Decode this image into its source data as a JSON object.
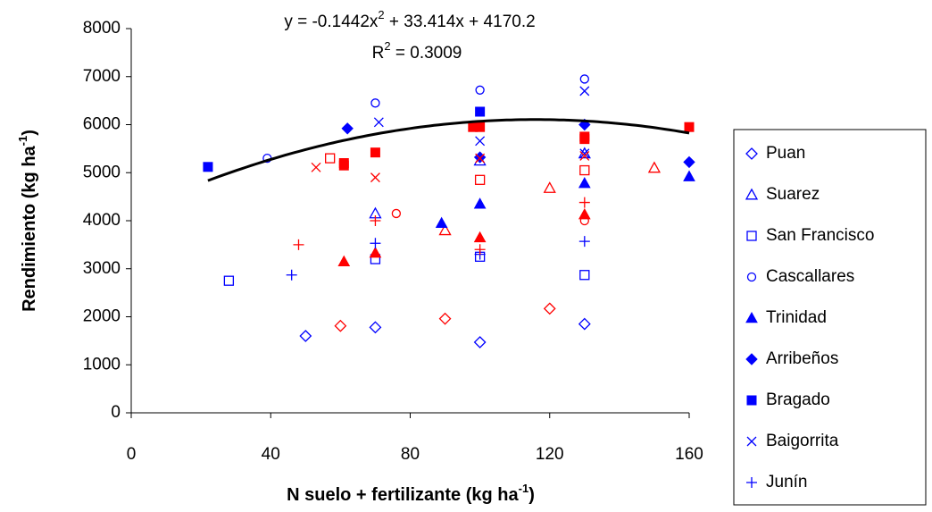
{
  "chart_data": {
    "type": "scatter",
    "equation": [
      "y = -0.1442x",
      "2",
      " + 33.414x + 4170.2"
    ],
    "r_squared": [
      "R",
      "2",
      " = 0.3009"
    ],
    "xlabel": [
      "N suelo + fertilizante (kg ha",
      "-1",
      ")"
    ],
    "ylabel": [
      "Rendimiento (kg ha",
      "-1",
      ")"
    ],
    "xlim": [
      0,
      160
    ],
    "xticks": [
      0,
      40,
      80,
      120,
      160
    ],
    "ylim": [
      0,
      8000
    ],
    "yticks": [
      0,
      1000,
      2000,
      3000,
      4000,
      5000,
      6000,
      7000,
      8000
    ],
    "trendline": {
      "coefficients": [
        -0.1442,
        33.414,
        4170.2
      ],
      "xlim": [
        22,
        160
      ],
      "color": "#000000"
    },
    "legend": "right",
    "series": [
      {
        "name": "Puan",
        "marker": "diamond-open",
        "color": "#0000ff",
        "x": [
          50,
          70,
          100,
          130,
          60,
          90,
          120
        ],
        "values": [
          1600,
          1780,
          1470,
          1850,
          1810,
          1960,
          2170
        ],
        "colors": [
          "#0000ff",
          "#0000ff",
          "#0000ff",
          "#0000ff",
          "#ff0000",
          "#ff0000",
          "#ff0000"
        ]
      },
      {
        "name": "Suarez",
        "marker": "triangle-open",
        "color": "#0000ff",
        "x": [
          70,
          100,
          130,
          90,
          120,
          150
        ],
        "values": [
          4150,
          5250,
          5400,
          3800,
          4680,
          5100
        ],
        "colors": [
          "#0000ff",
          "#0000ff",
          "#0000ff",
          "#ff0000",
          "#ff0000",
          "#ff0000"
        ]
      },
      {
        "name": "San Francisco",
        "marker": "square-open",
        "color": "#0000ff",
        "x": [
          28,
          70,
          100,
          130,
          57,
          100,
          130
        ],
        "values": [
          2750,
          3200,
          3250,
          2870,
          5300,
          4850,
          5050
        ],
        "colors": [
          "#0000ff",
          "#0000ff",
          "#0000ff",
          "#0000ff",
          "#ff0000",
          "#ff0000",
          "#ff0000"
        ]
      },
      {
        "name": "Cascallares",
        "marker": "circle-open",
        "color": "#0000ff",
        "x": [
          39,
          70,
          100,
          130,
          76,
          130
        ],
        "values": [
          5300,
          6450,
          6720,
          6950,
          4150,
          4000
        ],
        "colors": [
          "#0000ff",
          "#0000ff",
          "#0000ff",
          "#0000ff",
          "#ff0000",
          "#ff0000"
        ]
      },
      {
        "name": "Trinidad",
        "marker": "triangle",
        "color": "#0000ff",
        "x": [
          89,
          100,
          130,
          160,
          61,
          70,
          100,
          130
        ],
        "values": [
          3950,
          4350,
          4780,
          4920,
          3150,
          3330,
          3650,
          4130
        ],
        "colors": [
          "#0000ff",
          "#0000ff",
          "#0000ff",
          "#0000ff",
          "#ff0000",
          "#ff0000",
          "#ff0000",
          "#ff0000"
        ]
      },
      {
        "name": "Arribeños",
        "marker": "diamond",
        "color": "#0000ff",
        "x": [
          62,
          100,
          130,
          160
        ],
        "values": [
          5920,
          5320,
          6000,
          5220
        ],
        "colors": [
          "#0000ff",
          "#0000ff",
          "#0000ff",
          "#0000ff"
        ]
      },
      {
        "name": "Bragado",
        "marker": "square",
        "color": "#0000ff",
        "x": [
          22,
          100,
          61,
          61,
          70,
          98,
          100,
          130,
          130,
          160
        ],
        "values": [
          5120,
          6270,
          5150,
          5200,
          5420,
          5950,
          5950,
          5700,
          5750,
          5950
        ],
        "colors": [
          "#0000ff",
          "#0000ff",
          "#ff0000",
          "#ff0000",
          "#ff0000",
          "#ff0000",
          "#ff0000",
          "#ff0000",
          "#ff0000",
          "#ff0000"
        ]
      },
      {
        "name": "Baigorrita",
        "marker": "x",
        "color": "#0000ff",
        "x": [
          71,
          100,
          130,
          130,
          53,
          70,
          100,
          130
        ],
        "values": [
          6050,
          5660,
          6700,
          5400,
          5110,
          4900,
          5300,
          5350
        ],
        "colors": [
          "#0000ff",
          "#0000ff",
          "#0000ff",
          "#0000ff",
          "#ff0000",
          "#ff0000",
          "#ff0000",
          "#ff0000"
        ]
      },
      {
        "name": "Junín",
        "marker": "plus",
        "color": "#0000ff",
        "x": [
          46,
          70,
          100,
          130,
          48,
          70,
          100,
          130
        ],
        "values": [
          2870,
          3530,
          3300,
          3570,
          3500,
          4000,
          3400,
          4380
        ],
        "colors": [
          "#0000ff",
          "#0000ff",
          "#0000ff",
          "#0000ff",
          "#ff0000",
          "#ff0000",
          "#ff0000",
          "#ff0000"
        ]
      }
    ]
  }
}
